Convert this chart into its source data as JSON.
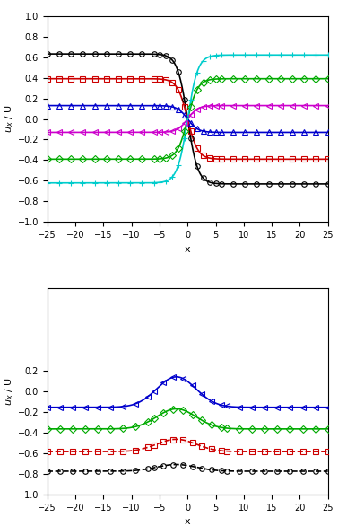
{
  "top": {
    "xlabel": "x",
    "ylabel": "u_x / U",
    "xlim": [
      -25,
      25
    ],
    "ylim": [
      -1,
      1
    ],
    "yticks": [
      -1,
      -0.8,
      -0.6,
      -0.4,
      -0.2,
      0,
      0.2,
      0.4,
      0.6,
      0.8,
      1
    ],
    "xticks": [
      -25,
      -20,
      -15,
      -10,
      -5,
      0,
      5,
      10,
      15,
      20,
      25
    ],
    "series": [
      {
        "color": "#000000",
        "level": 0.63,
        "marker": "o",
        "markersize": 4
      },
      {
        "color": "#cc0000",
        "level": 0.39,
        "marker": "s",
        "markersize": 4
      },
      {
        "color": "#0000cc",
        "level": 0.13,
        "marker": "^",
        "markersize": 4
      },
      {
        "color": "#cc00cc",
        "level": -0.13,
        "marker": "<",
        "markersize": 4
      },
      {
        "color": "#00aa00",
        "level": -0.39,
        "marker": "D",
        "markersize": 4
      },
      {
        "color": "#00cccc",
        "level": -0.62,
        "marker": "+",
        "markersize": 4
      }
    ]
  },
  "bottom": {
    "xlabel": "x",
    "ylabel": "u_x / U",
    "xlim": [
      -25,
      25
    ],
    "ylim": [
      -1,
      1
    ],
    "yticks": [
      -1,
      -0.8,
      -0.6,
      -0.4,
      -0.2,
      0,
      0.2
    ],
    "xticks": [
      -25,
      -20,
      -15,
      -10,
      -5,
      0,
      5,
      10,
      15,
      20,
      25
    ],
    "series": [
      {
        "color": "#0000cc",
        "base": -0.155,
        "amp": 0.295,
        "marker": "<",
        "markersize": 4,
        "dashed": false
      },
      {
        "color": "#00aa00",
        "base": -0.365,
        "amp": 0.195,
        "marker": "D",
        "markersize": 4,
        "dashed": false
      },
      {
        "color": "#cc0000",
        "base": -0.585,
        "amp": 0.12,
        "marker": "s",
        "markersize": 4,
        "dashed": true
      },
      {
        "color": "#000000",
        "base": -0.775,
        "amp": 0.065,
        "marker": "o",
        "markersize": 4,
        "dashed": true
      }
    ]
  }
}
